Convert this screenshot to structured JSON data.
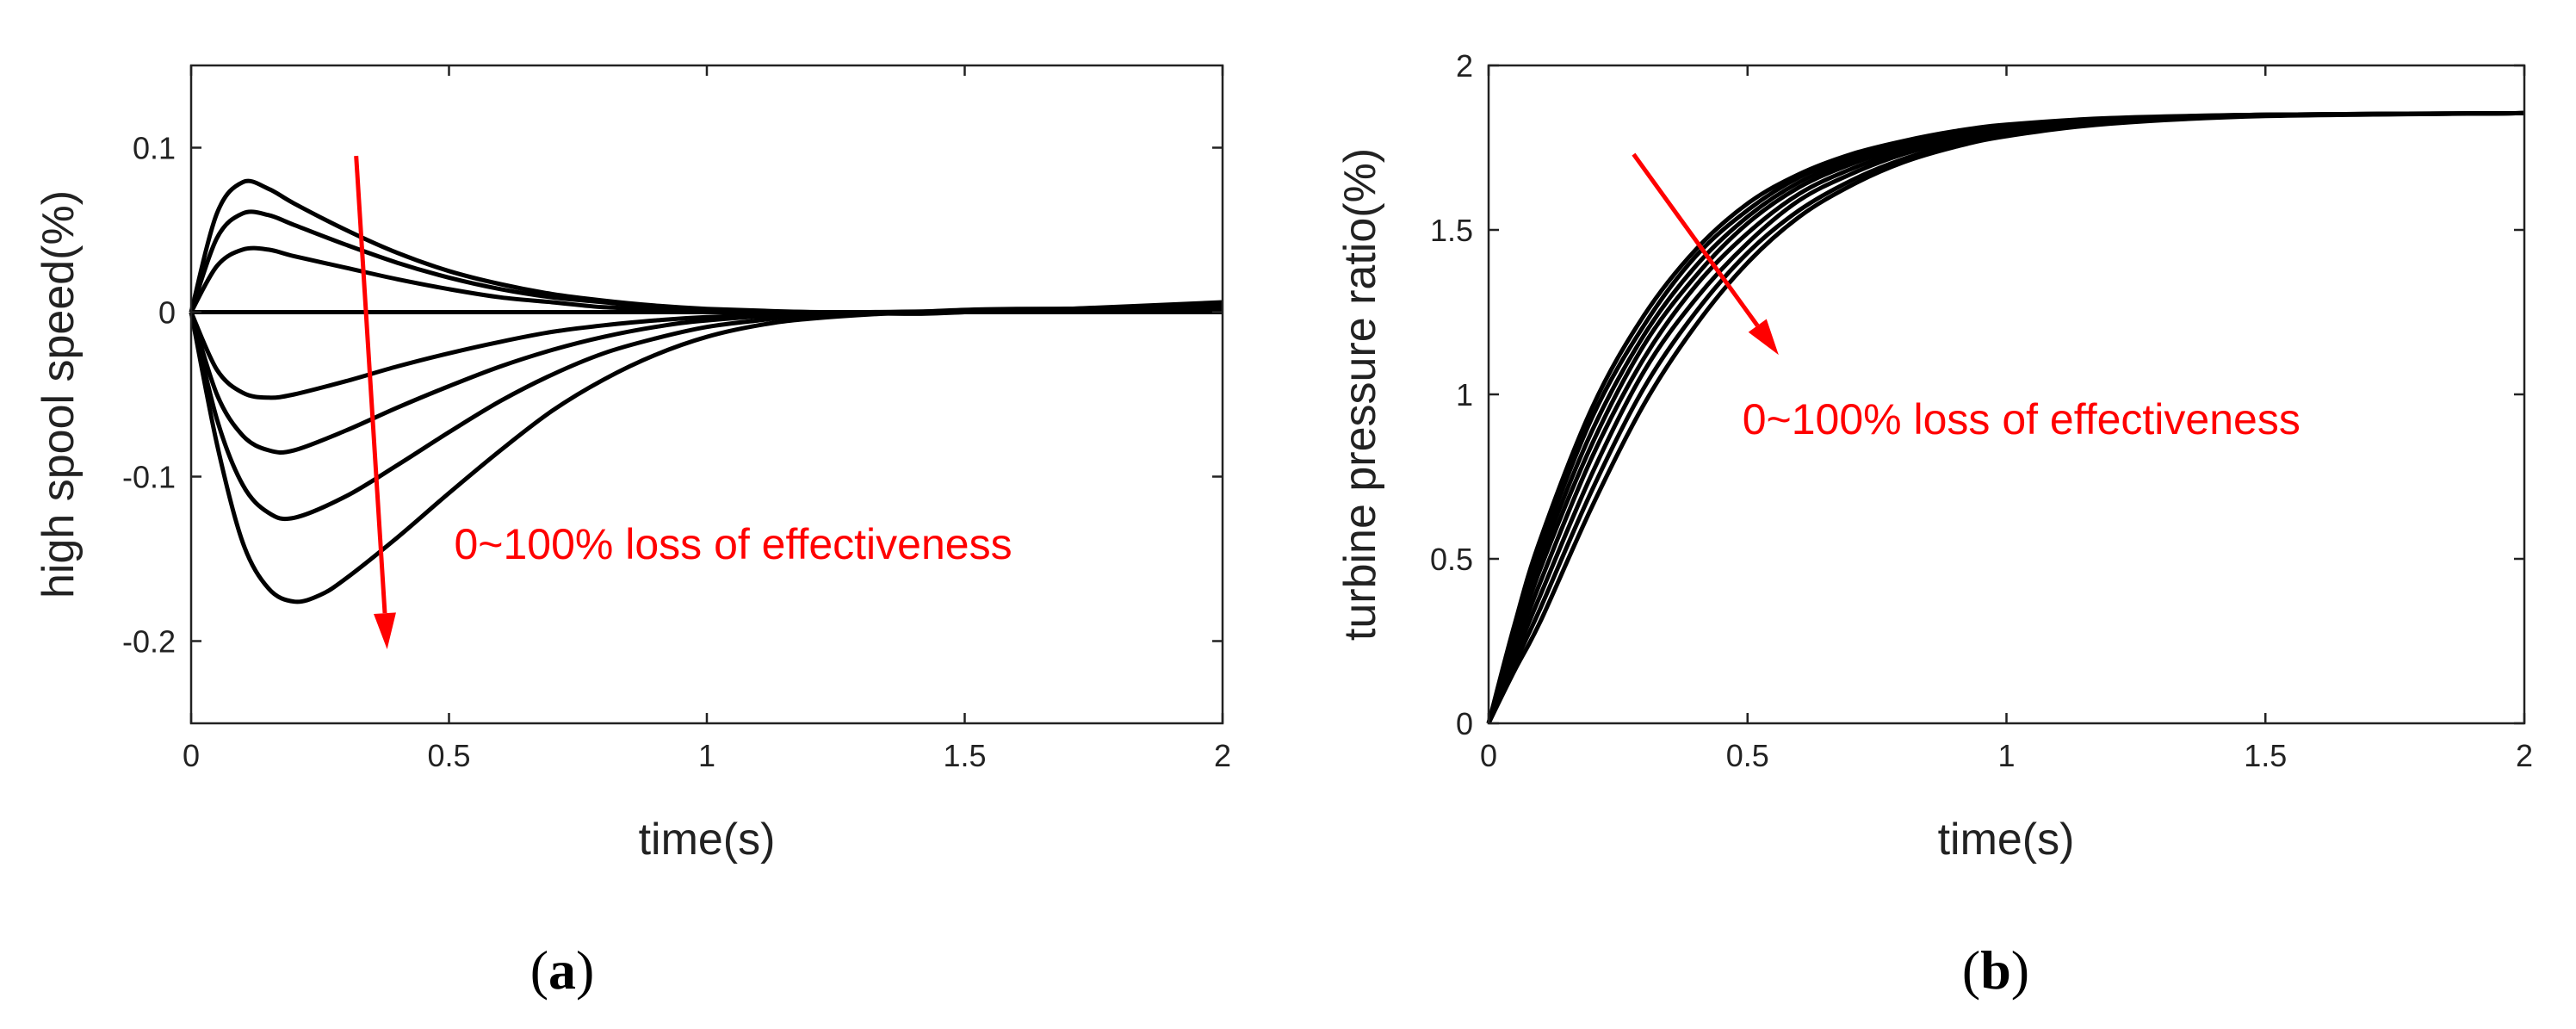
{
  "figure_labels": [
    {
      "open": "(",
      "letter": "a",
      "close": ")"
    },
    {
      "open": "(",
      "letter": "b",
      "close": ")"
    }
  ],
  "chart_data": [
    {
      "type": "line",
      "id": "a",
      "xlabel": "time(s)",
      "ylabel": "high spool speed(%)",
      "xlim": [
        0,
        2
      ],
      "ylim": [
        -0.25,
        0.15
      ],
      "xticks": [
        0,
        0.5,
        1,
        1.5,
        2
      ],
      "xtick_labels": [
        "0",
        "0.5",
        "1",
        "1.5",
        "2"
      ],
      "yticks": [
        -0.2,
        -0.1,
        0,
        0.1
      ],
      "ytick_labels": [
        "-0.2",
        "-0.1",
        "0",
        "0.1"
      ],
      "annotation": {
        "text": "0~100% loss of effectiveness",
        "arrow_from": [
          0.32,
          0.095
        ],
        "arrow_to": [
          0.38,
          -0.205
        ],
        "text_at": [
          0.51,
          -0.15
        ]
      },
      "series": [
        {
          "name": "curve-1",
          "values": [
            [
              0,
              0
            ],
            [
              0.05,
              0.06
            ],
            [
              0.1,
              0.079
            ],
            [
              0.15,
              0.075
            ],
            [
              0.2,
              0.066
            ],
            [
              0.3,
              0.05
            ],
            [
              0.4,
              0.036
            ],
            [
              0.5,
              0.025
            ],
            [
              0.6,
              0.017
            ],
            [
              0.7,
              0.011
            ],
            [
              0.8,
              0.007
            ],
            [
              0.9,
              0.004
            ],
            [
              1.0,
              0.002
            ],
            [
              1.2,
              0.0
            ],
            [
              1.4,
              -0.001
            ],
            [
              1.5,
              0.0
            ],
            [
              1.7,
              0.002
            ],
            [
              2.0,
              0.006
            ]
          ]
        },
        {
          "name": "curve-2",
          "values": [
            [
              0,
              0
            ],
            [
              0.05,
              0.045
            ],
            [
              0.1,
              0.06
            ],
            [
              0.15,
              0.059
            ],
            [
              0.2,
              0.053
            ],
            [
              0.3,
              0.041
            ],
            [
              0.4,
              0.03
            ],
            [
              0.5,
              0.021
            ],
            [
              0.6,
              0.014
            ],
            [
              0.7,
              0.009
            ],
            [
              0.8,
              0.006
            ],
            [
              0.9,
              0.003
            ],
            [
              1.0,
              0.001
            ],
            [
              1.2,
              0.0
            ],
            [
              1.4,
              0.0
            ],
            [
              1.7,
              0.002
            ],
            [
              2.0,
              0.005
            ]
          ]
        },
        {
          "name": "curve-3",
          "values": [
            [
              0,
              0
            ],
            [
              0.05,
              0.028
            ],
            [
              0.1,
              0.038
            ],
            [
              0.15,
              0.038
            ],
            [
              0.2,
              0.034
            ],
            [
              0.3,
              0.027
            ],
            [
              0.4,
              0.02
            ],
            [
              0.5,
              0.014
            ],
            [
              0.6,
              0.009
            ],
            [
              0.7,
              0.006
            ],
            [
              0.8,
              0.003
            ],
            [
              0.9,
              0.002
            ],
            [
              1.0,
              0.001
            ],
            [
              1.3,
              0.0
            ],
            [
              1.7,
              0.002
            ],
            [
              2.0,
              0.004
            ]
          ]
        },
        {
          "name": "curve-4",
          "values": [
            [
              0,
              0
            ],
            [
              2.0,
              0
            ]
          ]
        },
        {
          "name": "curve-5",
          "values": [
            [
              0,
              0
            ],
            [
              0.05,
              -0.035
            ],
            [
              0.1,
              -0.049
            ],
            [
              0.15,
              -0.052
            ],
            [
              0.2,
              -0.05
            ],
            [
              0.3,
              -0.042
            ],
            [
              0.4,
              -0.033
            ],
            [
              0.5,
              -0.025
            ],
            [
              0.6,
              -0.018
            ],
            [
              0.7,
              -0.012
            ],
            [
              0.8,
              -0.008
            ],
            [
              0.9,
              -0.005
            ],
            [
              1.0,
              -0.003
            ],
            [
              1.2,
              -0.001
            ],
            [
              1.5,
              0.0
            ],
            [
              1.8,
              0.001
            ],
            [
              2.0,
              0.001
            ]
          ]
        },
        {
          "name": "curve-6",
          "values": [
            [
              0,
              0
            ],
            [
              0.05,
              -0.05
            ],
            [
              0.1,
              -0.075
            ],
            [
              0.15,
              -0.084
            ],
            [
              0.2,
              -0.084
            ],
            [
              0.3,
              -0.072
            ],
            [
              0.4,
              -0.058
            ],
            [
              0.5,
              -0.045
            ],
            [
              0.6,
              -0.033
            ],
            [
              0.7,
              -0.023
            ],
            [
              0.8,
              -0.015
            ],
            [
              0.9,
              -0.009
            ],
            [
              1.0,
              -0.005
            ],
            [
              1.2,
              -0.001
            ],
            [
              1.5,
              0.0
            ],
            [
              2.0,
              0.002
            ]
          ]
        },
        {
          "name": "curve-7",
          "values": [
            [
              0,
              0
            ],
            [
              0.05,
              -0.065
            ],
            [
              0.1,
              -0.105
            ],
            [
              0.15,
              -0.122
            ],
            [
              0.2,
              -0.125
            ],
            [
              0.3,
              -0.112
            ],
            [
              0.4,
              -0.093
            ],
            [
              0.5,
              -0.073
            ],
            [
              0.6,
              -0.054
            ],
            [
              0.7,
              -0.038
            ],
            [
              0.8,
              -0.025
            ],
            [
              0.9,
              -0.016
            ],
            [
              1.0,
              -0.009
            ],
            [
              1.1,
              -0.005
            ],
            [
              1.2,
              -0.002
            ],
            [
              1.4,
              0.0
            ],
            [
              2.0,
              0.001
            ]
          ]
        },
        {
          "name": "curve-8",
          "values": [
            [
              0,
              0
            ],
            [
              0.05,
              -0.08
            ],
            [
              0.1,
              -0.14
            ],
            [
              0.15,
              -0.168
            ],
            [
              0.2,
              -0.176
            ],
            [
              0.25,
              -0.172
            ],
            [
              0.3,
              -0.162
            ],
            [
              0.4,
              -0.137
            ],
            [
              0.5,
              -0.11
            ],
            [
              0.6,
              -0.084
            ],
            [
              0.7,
              -0.06
            ],
            [
              0.8,
              -0.041
            ],
            [
              0.9,
              -0.026
            ],
            [
              1.0,
              -0.015
            ],
            [
              1.1,
              -0.008
            ],
            [
              1.2,
              -0.004
            ],
            [
              1.4,
              0.0
            ],
            [
              1.6,
              0.002
            ],
            [
              2.0,
              0.002
            ]
          ]
        }
      ]
    },
    {
      "type": "line",
      "id": "b",
      "xlabel": "time(s)",
      "ylabel": "turbine pressure ratio(%)",
      "xlim": [
        0,
        2
      ],
      "ylim": [
        0,
        2
      ],
      "xticks": [
        0,
        0.5,
        1,
        1.5,
        2
      ],
      "xtick_labels": [
        "0",
        "0.5",
        "1",
        "1.5",
        "2"
      ],
      "yticks": [
        0,
        0.5,
        1,
        1.5,
        2
      ],
      "ytick_labels": [
        "0",
        "0.5",
        "1",
        "1.5",
        "2"
      ],
      "annotation": {
        "text": "0~100% loss of effectiveness",
        "arrow_from": [
          0.28,
          1.73
        ],
        "arrow_to": [
          0.56,
          1.12
        ],
        "text_at": [
          0.49,
          0.88
        ]
      },
      "series": [
        {
          "name": "curve-1",
          "values": [
            [
              0,
              0
            ],
            [
              0.05,
              0.3
            ],
            [
              0.1,
              0.56
            ],
            [
              0.2,
              0.96
            ],
            [
              0.3,
              1.24
            ],
            [
              0.4,
              1.44
            ],
            [
              0.5,
              1.58
            ],
            [
              0.6,
              1.67
            ],
            [
              0.7,
              1.73
            ],
            [
              0.8,
              1.77
            ],
            [
              0.9,
              1.8
            ],
            [
              1.0,
              1.82
            ],
            [
              1.2,
              1.84
            ],
            [
              1.5,
              1.85
            ],
            [
              2.0,
              1.855
            ]
          ]
        },
        {
          "name": "curve-2",
          "values": [
            [
              0,
              0
            ],
            [
              0.05,
              0.28
            ],
            [
              0.1,
              0.53
            ],
            [
              0.2,
              0.93
            ],
            [
              0.3,
              1.21
            ],
            [
              0.4,
              1.42
            ],
            [
              0.5,
              1.56
            ],
            [
              0.6,
              1.66
            ],
            [
              0.7,
              1.72
            ],
            [
              0.8,
              1.765
            ],
            [
              0.9,
              1.795
            ],
            [
              1.0,
              1.815
            ],
            [
              1.2,
              1.838
            ],
            [
              1.5,
              1.85
            ],
            [
              2.0,
              1.855
            ]
          ]
        },
        {
          "name": "curve-3",
          "values": [
            [
              0,
              0
            ],
            [
              0.05,
              0.26
            ],
            [
              0.1,
              0.5
            ],
            [
              0.2,
              0.89
            ],
            [
              0.3,
              1.18
            ],
            [
              0.4,
              1.39
            ],
            [
              0.5,
              1.54
            ],
            [
              0.6,
              1.645
            ],
            [
              0.7,
              1.71
            ],
            [
              0.8,
              1.76
            ],
            [
              0.9,
              1.79
            ],
            [
              1.0,
              1.81
            ],
            [
              1.2,
              1.836
            ],
            [
              1.5,
              1.85
            ],
            [
              2.0,
              1.855
            ]
          ]
        },
        {
          "name": "curve-4",
          "values": [
            [
              0,
              0
            ],
            [
              0.05,
              0.24
            ],
            [
              0.1,
              0.47
            ],
            [
              0.2,
              0.85
            ],
            [
              0.3,
              1.15
            ],
            [
              0.4,
              1.36
            ],
            [
              0.5,
              1.52
            ],
            [
              0.6,
              1.63
            ],
            [
              0.7,
              1.7
            ],
            [
              0.8,
              1.75
            ],
            [
              0.9,
              1.785
            ],
            [
              1.0,
              1.808
            ],
            [
              1.2,
              1.834
            ],
            [
              1.5,
              1.849
            ],
            [
              2.0,
              1.855
            ]
          ]
        },
        {
          "name": "curve-5",
          "values": [
            [
              0,
              0
            ],
            [
              0.05,
              0.22
            ],
            [
              0.1,
              0.43
            ],
            [
              0.2,
              0.81
            ],
            [
              0.3,
              1.11
            ],
            [
              0.4,
              1.33
            ],
            [
              0.5,
              1.49
            ],
            [
              0.6,
              1.61
            ],
            [
              0.7,
              1.685
            ],
            [
              0.8,
              1.74
            ],
            [
              0.9,
              1.778
            ],
            [
              1.0,
              1.803
            ],
            [
              1.2,
              1.832
            ],
            [
              1.5,
              1.848
            ],
            [
              2.0,
              1.855
            ]
          ]
        },
        {
          "name": "curve-6",
          "values": [
            [
              0,
              0
            ],
            [
              0.05,
              0.2
            ],
            [
              0.1,
              0.39
            ],
            [
              0.2,
              0.76
            ],
            [
              0.3,
              1.07
            ],
            [
              0.4,
              1.29
            ],
            [
              0.5,
              1.46
            ],
            [
              0.6,
              1.59
            ],
            [
              0.7,
              1.67
            ],
            [
              0.8,
              1.73
            ],
            [
              0.9,
              1.77
            ],
            [
              1.0,
              1.798
            ],
            [
              1.2,
              1.83
            ],
            [
              1.5,
              1.848
            ],
            [
              2.0,
              1.855
            ]
          ]
        },
        {
          "name": "curve-7",
          "values": [
            [
              0,
              0
            ],
            [
              0.05,
              0.18
            ],
            [
              0.1,
              0.35
            ],
            [
              0.2,
              0.71
            ],
            [
              0.3,
              1.02
            ],
            [
              0.4,
              1.25
            ],
            [
              0.5,
              1.43
            ],
            [
              0.6,
              1.56
            ],
            [
              0.7,
              1.65
            ],
            [
              0.8,
              1.715
            ],
            [
              0.9,
              1.76
            ],
            [
              1.0,
              1.79
            ],
            [
              1.2,
              1.826
            ],
            [
              1.5,
              1.847
            ],
            [
              2.0,
              1.855
            ]
          ]
        },
        {
          "name": "curve-8",
          "values": [
            [
              0,
              0
            ],
            [
              0.05,
              0.16
            ],
            [
              0.1,
              0.31
            ],
            [
              0.2,
              0.66
            ],
            [
              0.3,
              0.97
            ],
            [
              0.4,
              1.21
            ],
            [
              0.5,
              1.4
            ],
            [
              0.6,
              1.54
            ],
            [
              0.7,
              1.635
            ],
            [
              0.8,
              1.705
            ],
            [
              0.9,
              1.752
            ],
            [
              1.0,
              1.785
            ],
            [
              1.2,
              1.823
            ],
            [
              1.5,
              1.846
            ],
            [
              2.0,
              1.855
            ]
          ]
        }
      ]
    }
  ]
}
